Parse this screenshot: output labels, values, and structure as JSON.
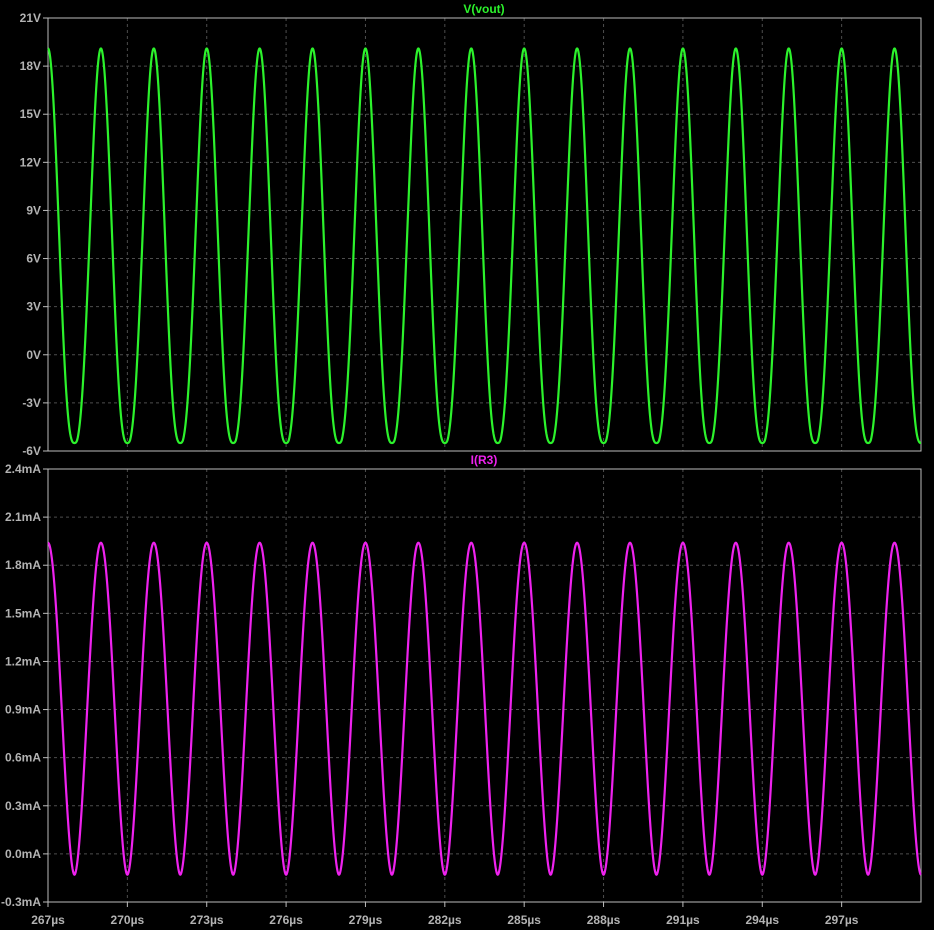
{
  "colors": {
    "background": "#000000",
    "axis_text": "#b3b3b3",
    "frame": "#bdbdbd",
    "grid": "#4d4d4d",
    "vout": "#2cf22c",
    "i_r3": "#ee22ee"
  },
  "chart_data": [
    {
      "type": "line",
      "title": "V(vout)",
      "title_color": "#2cf22c",
      "y_ticks": [
        "21V",
        "18V",
        "15V",
        "12V",
        "9V",
        "6V",
        "3V",
        "0V",
        "-3V",
        "-6V"
      ],
      "ylim": [
        -6,
        21
      ],
      "x_unit": "µs",
      "xlim": [
        267,
        300
      ],
      "grid": true,
      "series": [
        {
          "name": "V(vout)",
          "color": "#2cf22c",
          "period_us": 2.0,
          "start_us": 267,
          "max": 19.1,
          "min": -5.5,
          "shape": "asymmetric pulse: sharp peaks near 19V, rounded flat troughs near -5.5V"
        }
      ]
    },
    {
      "type": "line",
      "title": "I(R3)",
      "title_color": "#ee22ee",
      "y_ticks": [
        "2.4mA",
        "2.1mA",
        "1.8mA",
        "1.5mA",
        "1.2mA",
        "0.9mA",
        "0.6mA",
        "0.3mA",
        "0.0mA",
        "-0.3mA"
      ],
      "ylim": [
        -0.3,
        2.4
      ],
      "x_ticks": [
        "267µs",
        "270µs",
        "273µs",
        "276µs",
        "279µs",
        "282µs",
        "285µs",
        "288µs",
        "291µs",
        "294µs",
        "297µs"
      ],
      "x_unit": "µs",
      "xlim": [
        267,
        300
      ],
      "grid": true,
      "series": [
        {
          "name": "I(R3)",
          "color": "#ee22ee",
          "period_us": 2.0,
          "start_us": 267,
          "max": 1.94,
          "min": -0.13,
          "shape": "near-sinusoidal, sharp minima near -0.13mA"
        }
      ]
    }
  ]
}
